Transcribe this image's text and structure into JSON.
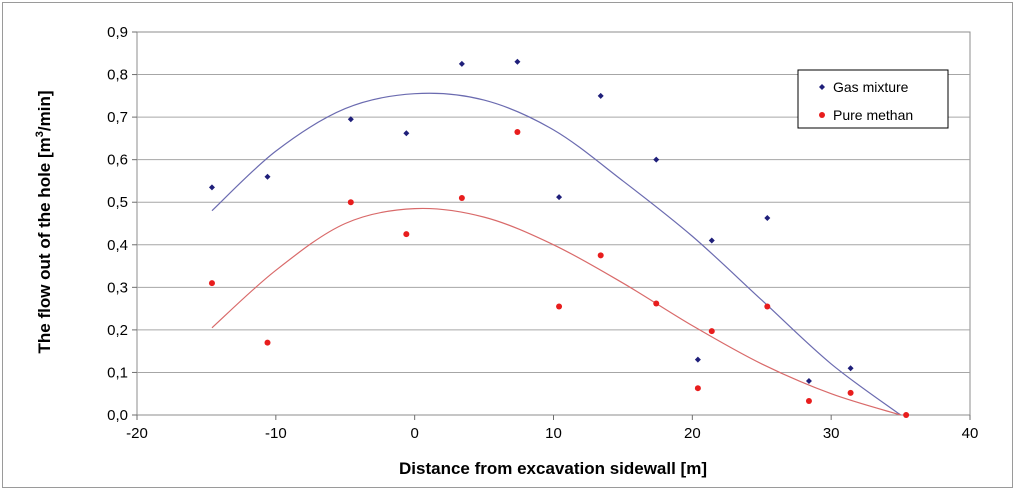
{
  "chart_data": {
    "type": "scatter",
    "xlabel": "Distance from excavation sidewall [m]",
    "ylabel_parts": [
      "The flow out of the hole [m",
      "3",
      "/min]"
    ],
    "xlim": [
      -20,
      40
    ],
    "ylim": [
      0,
      0.9
    ],
    "x_ticks": [
      "-20",
      "-10",
      "0",
      "10",
      "20",
      "30",
      "40"
    ],
    "y_ticks": [
      "0,0",
      "0,1",
      "0,2",
      "0,3",
      "0,4",
      "0,5",
      "0,6",
      "0,7",
      "0,8",
      "0,9"
    ],
    "grid": "horizontal",
    "legend_position": "top-right",
    "series": [
      {
        "name": "Gas mixture",
        "color": "#1f1f7a",
        "marker": "diamond",
        "points": [
          [
            -14.6,
            0.535
          ],
          [
            -10.6,
            0.56
          ],
          [
            -4.6,
            0.695
          ],
          [
            -0.6,
            0.662
          ],
          [
            3.4,
            0.825
          ],
          [
            7.4,
            0.83
          ],
          [
            10.4,
            0.512
          ],
          [
            13.4,
            0.75
          ],
          [
            17.4,
            0.6
          ],
          [
            20.4,
            0.13
          ],
          [
            21.4,
            0.41
          ],
          [
            25.4,
            0.463
          ],
          [
            28.4,
            0.08
          ],
          [
            31.4,
            0.11
          ],
          [
            35.4,
            0.0
          ]
        ],
        "trend": {
          "color": "#6b6bb0",
          "x_range": [
            -14.6,
            35.0
          ],
          "points": [
            [
              -14.6,
              0.48
            ],
            [
              -10,
              0.62
            ],
            [
              -5,
              0.72
            ],
            [
              0,
              0.755
            ],
            [
              5,
              0.74
            ],
            [
              10,
              0.67
            ],
            [
              15,
              0.55
            ],
            [
              20,
              0.42
            ],
            [
              25,
              0.27
            ],
            [
              30,
              0.12
            ],
            [
              35,
              0.0
            ]
          ]
        }
      },
      {
        "name": "Pure methan",
        "color": "#e81d1d",
        "marker": "circle",
        "points": [
          [
            -14.6,
            0.31
          ],
          [
            -10.6,
            0.17
          ],
          [
            -4.6,
            0.5
          ],
          [
            -0.6,
            0.425
          ],
          [
            3.4,
            0.51
          ],
          [
            7.4,
            0.665
          ],
          [
            10.4,
            0.255
          ],
          [
            13.4,
            0.375
          ],
          [
            17.4,
            0.262
          ],
          [
            20.4,
            0.063
          ],
          [
            21.4,
            0.197
          ],
          [
            25.4,
            0.255
          ],
          [
            28.4,
            0.033
          ],
          [
            31.4,
            0.052
          ],
          [
            35.4,
            0.0
          ]
        ],
        "trend": {
          "color": "#d96a6a",
          "x_range": [
            -14.6,
            35.0
          ],
          "points": [
            [
              -14.6,
              0.205
            ],
            [
              -10,
              0.34
            ],
            [
              -5,
              0.45
            ],
            [
              0,
              0.485
            ],
            [
              5,
              0.465
            ],
            [
              10,
              0.4
            ],
            [
              15,
              0.31
            ],
            [
              20,
              0.21
            ],
            [
              25,
              0.12
            ],
            [
              30,
              0.05
            ],
            [
              35,
              0.0
            ]
          ]
        }
      }
    ]
  }
}
